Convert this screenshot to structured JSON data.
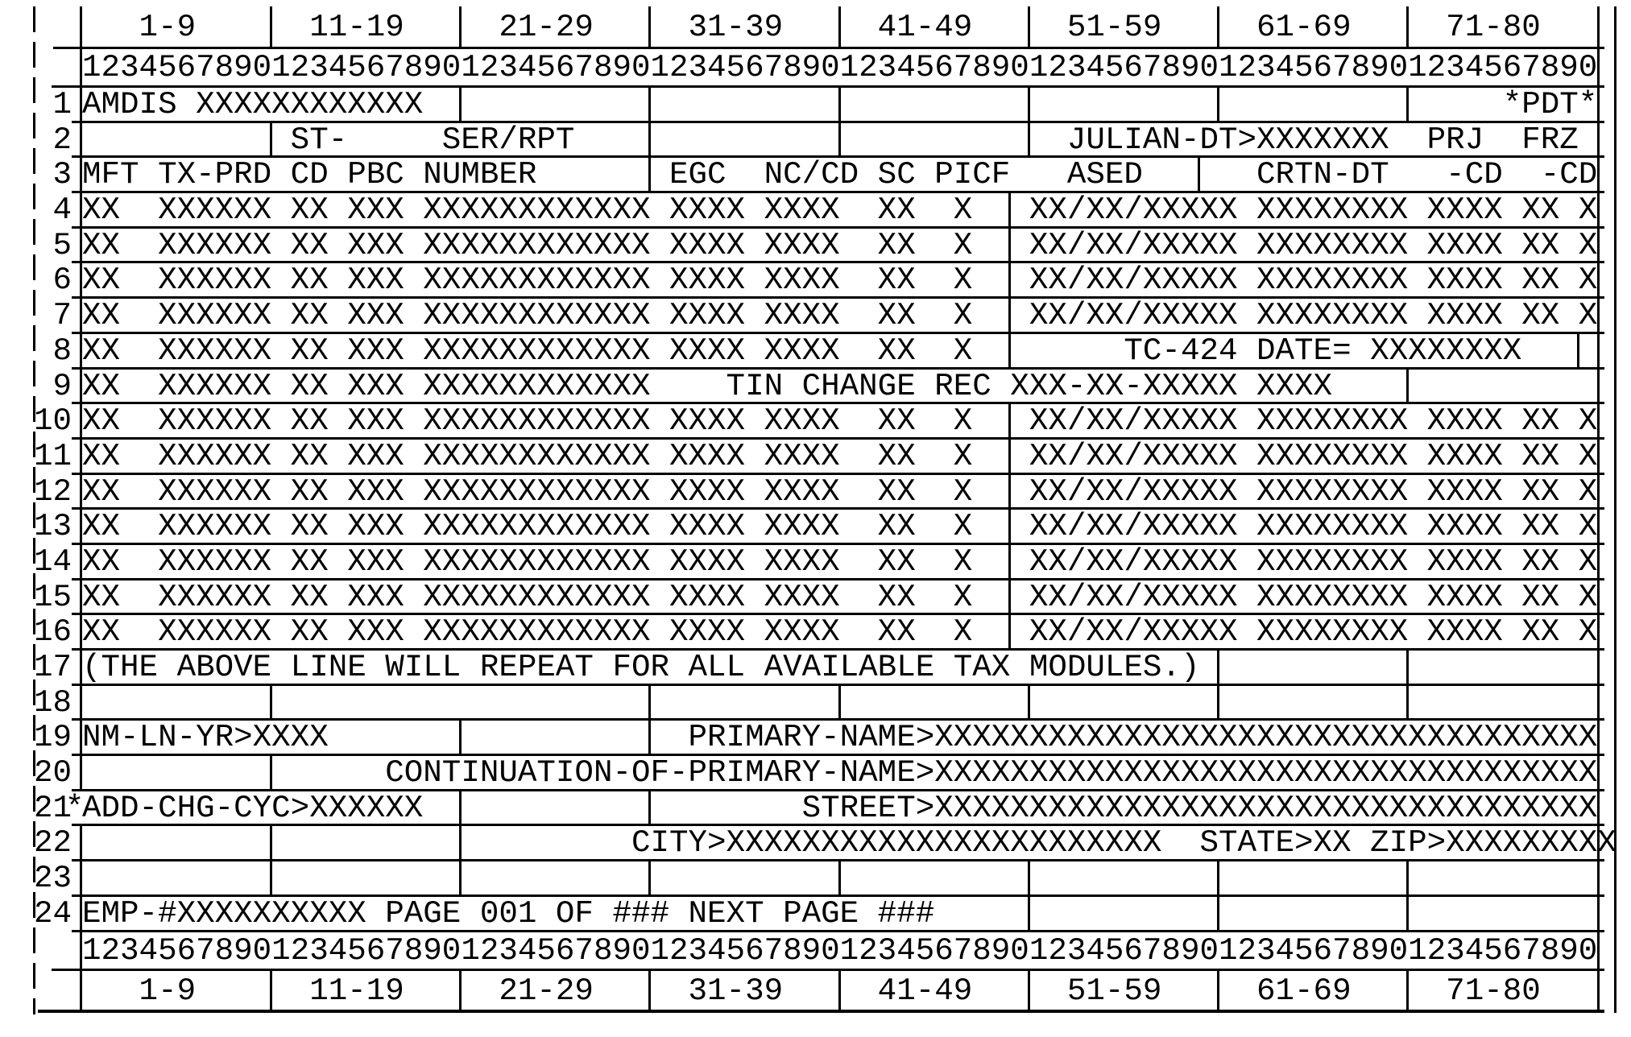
{
  "screen_title": "AMDIS",
  "column_header_ranges": [
    "1-9",
    "11-19",
    "21-29",
    "31-39",
    "41-49",
    "51-59",
    "61-69",
    "71-80"
  ],
  "column_ruler": "12345678901234567890123456789012345678901234567890123456789012345678901234567890",
  "notable_values": {
    "screen_command": "AMDIS XXXXXXXXXXXX",
    "pdt_flag": "*PDT*",
    "julian_date": "JULIAN-DT>XXXXXXX",
    "tc424": "TC-424 DATE= XXXXXXXX",
    "tin_change": "TIN CHANGE REC XXX-XX-XXXXX XXXX",
    "repeat_note": "(THE ABOVE LINE WILL REPEAT FOR ALL AVAILABLE TAX MODULES.)",
    "page_line": "EMP-#XXXXXXXXXX PAGE 001 OF ### NEXT PAGE ###"
  },
  "rows": [
    {
      "kind": "ranges",
      "cls": "top",
      "num": "",
      "text": "   1-9      11-19     21-29     31-39     41-49     51-59     61-69     71-80   ",
      "dividers": [
        10,
        20,
        30,
        40,
        50,
        60,
        70
      ]
    },
    {
      "kind": "ruler",
      "num": "",
      "text": "12345678901234567890123456789012345678901234567890123456789012345678901234567890",
      "dividers": []
    },
    {
      "num": "1",
      "text": "AMDIS XXXXXXXXXXXX                                                         *PDT*",
      "dividers": [
        20,
        30,
        40,
        50,
        60,
        70
      ]
    },
    {
      "num": "2",
      "text": "           ST-     SER/RPT                          JULIAN-DT>XXXXXXX  PRJ  FRZ ",
      "dividers": [
        10,
        30,
        40,
        50
      ]
    },
    {
      "num": "3",
      "text": "MFT TX-PRD CD PBC NUMBER       EGC  NC/CD SC PICF   ASED      CRTN-DT   -CD  -CD",
      "dividers": [
        30,
        59
      ]
    },
    {
      "num": "4",
      "text": "XX  XXXXXX XX XXX XXXXXXXXXXXX XXXX XXXX  XX  X   XX/XX/XXXXX XXXXXXXX XXXX XX X",
      "dividers": [
        49
      ]
    },
    {
      "num": "5",
      "text": "XX  XXXXXX XX XXX XXXXXXXXXXXX XXXX XXXX  XX  X   XX/XX/XXXXX XXXXXXXX XXXX XX X",
      "dividers": [
        49
      ]
    },
    {
      "num": "6",
      "text": "XX  XXXXXX XX XXX XXXXXXXXXXXX XXXX XXXX  XX  X   XX/XX/XXXXX XXXXXXXX XXXX XX X",
      "dividers": [
        49
      ]
    },
    {
      "num": "7",
      "text": "XX  XXXXXX XX XXX XXXXXXXXXXXX XXXX XXXX  XX  X   XX/XX/XXXXX XXXXXXXX XXXX XX X",
      "dividers": [
        49
      ]
    },
    {
      "num": "8",
      "text": "XX  XXXXXX XX XXX XXXXXXXXXXXX XXXX XXXX  XX  X        TC-424 DATE= XXXXXXXX    ",
      "dividers": [
        49,
        79
      ]
    },
    {
      "num": "9",
      "text": "XX  XXXXXX XX XXX XXXXXXXXXXXX    TIN CHANGE REC XXX-XX-XXXXX XXXX              ",
      "dividers": [
        70
      ]
    },
    {
      "num": "10",
      "text": "XX  XXXXXX XX XXX XXXXXXXXXXXX XXXX XXXX  XX  X   XX/XX/XXXXX XXXXXXXX XXXX XX X",
      "dividers": [
        49
      ]
    },
    {
      "num": "11",
      "text": "XX  XXXXXX XX XXX XXXXXXXXXXXX XXXX XXXX  XX  X   XX/XX/XXXXX XXXXXXXX XXXX XX X",
      "dividers": [
        49
      ]
    },
    {
      "num": "12",
      "text": "XX  XXXXXX XX XXX XXXXXXXXXXXX XXXX XXXX  XX  X   XX/XX/XXXXX XXXXXXXX XXXX XX X",
      "dividers": [
        49
      ]
    },
    {
      "num": "13",
      "text": "XX  XXXXXX XX XXX XXXXXXXXXXXX XXXX XXXX  XX  X   XX/XX/XXXXX XXXXXXXX XXXX XX X",
      "dividers": [
        49
      ]
    },
    {
      "num": "14",
      "text": "XX  XXXXXX XX XXX XXXXXXXXXXXX XXXX XXXX  XX  X   XX/XX/XXXXX XXXXXXXX XXXX XX X",
      "dividers": [
        49
      ]
    },
    {
      "num": "15",
      "text": "XX  XXXXXX XX XXX XXXXXXXXXXXX XXXX XXXX  XX  X   XX/XX/XXXXX XXXXXXXX XXXX XX X",
      "dividers": [
        49
      ]
    },
    {
      "num": "16",
      "text": "XX  XXXXXX XX XXX XXXXXXXXXXXX XXXX XXXX  XX  X   XX/XX/XXXXX XXXXXXXX XXXX XX X",
      "dividers": [
        49
      ]
    },
    {
      "num": "17",
      "text": "(THE ABOVE LINE WILL REPEAT FOR ALL AVAILABLE TAX MODULES.)                     ",
      "dividers": [
        60,
        70
      ]
    },
    {
      "num": "18",
      "text": "                                                                                ",
      "dividers": [
        10,
        30,
        40,
        50,
        60,
        70
      ]
    },
    {
      "num": "19",
      "text": "NM-LN-YR>XXXX                   PRIMARY-NAME>XXXXXXXXXXXXXXXXXXXXXXXXXXXXXXXXXXX",
      "dividers": [
        20,
        30
      ]
    },
    {
      "num": "20",
      "text": "                CONTINUATION-OF-PRIMARY-NAME>XXXXXXXXXXXXXXXXXXXXXXXXXXXXXXXXXXX",
      "dividers": [
        10
      ]
    },
    {
      "num": "21",
      "star": "*",
      "no_left": true,
      "text": "ADD-CHG-CYC>XXXXXX                    STREET>XXXXXXXXXXXXXXXXXXXXXXXXXXXXXXXXXXX",
      "dividers": [
        20,
        30
      ]
    },
    {
      "num": "22",
      "text": "                             CITY>XXXXXXXXXXXXXXXXXXXXXXX  STATE>XX ZIP>XXXXXXXXX",
      "dividers": [
        10,
        20
      ]
    },
    {
      "num": "23",
      "text": "                                                                                ",
      "dividers": [
        10,
        20,
        30,
        40,
        50,
        60,
        70
      ]
    },
    {
      "num": "24",
      "text": "EMP-#XXXXXXXXXX PAGE 001 OF ### NEXT PAGE ###                                   ",
      "dividers": [
        50,
        60,
        70
      ]
    },
    {
      "kind": "ruler",
      "num": "",
      "text": "12345678901234567890123456789012345678901234567890123456789012345678901234567890",
      "dividers": []
    },
    {
      "kind": "ranges",
      "cls": "bottom",
      "num": "",
      "text": "   1-9      11-19     21-29     31-39     41-49     51-59     61-69     71-80   ",
      "dividers": [
        10,
        20,
        30,
        40,
        50,
        60,
        70
      ]
    }
  ]
}
